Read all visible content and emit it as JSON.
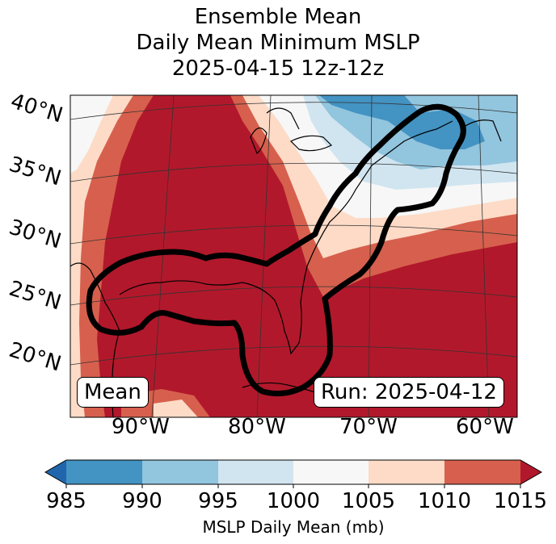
{
  "title": {
    "line1": "Ensemble Mean",
    "line2": "Daily Mean Minimum MSLP",
    "line3": "2025-04-15 12z-12z"
  },
  "map": {
    "lat_labels": [
      "40°N",
      "35°N",
      "30°N",
      "25°N",
      "20°N"
    ],
    "lon_labels": [
      "90°W",
      "80°W",
      "70°W",
      "60°W"
    ],
    "mean_label": "Mean",
    "run_label": "Run: 2025-04-12"
  },
  "colorbar": {
    "ticks": [
      "985",
      "990",
      "995",
      "1000",
      "1005",
      "1010",
      "1015"
    ],
    "label": "MSLP Daily Mean (mb)",
    "colors": {
      "under": "#2166ac",
      "985": "#4393c3",
      "990": "#92c5de",
      "995": "#d1e5f0",
      "1000": "#f7f7f7",
      "1005": "#fddbc7",
      "1010": "#d6604d",
      "over": "#b2182b"
    }
  }
}
